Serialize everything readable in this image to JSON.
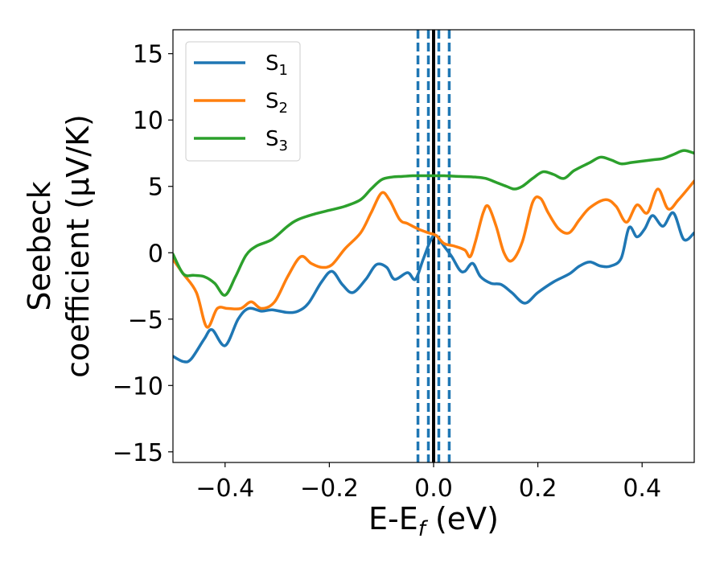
{
  "chart_data": {
    "type": "line",
    "title": "",
    "xlabel": {
      "main": "E-E",
      "sub": "f",
      "unit": " (eV)"
    },
    "ylabel": {
      "line1": "Seebeck",
      "line2": "coefficient  (μV/K)"
    },
    "xlim": [
      -0.5,
      0.5
    ],
    "ylim": [
      -15.8,
      16.8
    ],
    "xticks": [
      -0.4,
      -0.2,
      0.0,
      0.2,
      0.4
    ],
    "xtick_labels": [
      "−0.4",
      "−0.2",
      "0.0",
      "0.2",
      "0.4"
    ],
    "yticks": [
      -15,
      -10,
      -5,
      0,
      5,
      10,
      15
    ],
    "ytick_labels": [
      "−15",
      "−10",
      "−5",
      "0",
      "5",
      "10",
      "15"
    ],
    "grid": false,
    "legend_position": "top-left",
    "vlines": [
      {
        "x": 0.0,
        "style": "solid",
        "color": "#000000"
      },
      {
        "x": -0.03,
        "style": "dashed",
        "color": "#1f77b4"
      },
      {
        "x": -0.01,
        "style": "dashed",
        "color": "#1f77b4"
      },
      {
        "x": 0.01,
        "style": "dashed",
        "color": "#1f77b4"
      },
      {
        "x": 0.03,
        "style": "dashed",
        "color": "#1f77b4"
      }
    ],
    "series": [
      {
        "name": "S",
        "sub": "1",
        "color": "#1f77b4",
        "x": [
          -0.5,
          -0.48,
          -0.465,
          -0.44,
          -0.425,
          -0.4,
          -0.375,
          -0.355,
          -0.33,
          -0.31,
          -0.28,
          -0.26,
          -0.24,
          -0.215,
          -0.195,
          -0.175,
          -0.155,
          -0.13,
          -0.11,
          -0.09,
          -0.075,
          -0.05,
          -0.035,
          -0.02,
          -0.005,
          0.005,
          0.02,
          0.035,
          0.05,
          0.06,
          0.075,
          0.09,
          0.11,
          0.13,
          0.15,
          0.175,
          0.2,
          0.23,
          0.26,
          0.28,
          0.3,
          0.32,
          0.34,
          0.36,
          0.375,
          0.39,
          0.405,
          0.42,
          0.44,
          0.46,
          0.48,
          0.5
        ],
        "y": [
          -7.8,
          -8.2,
          -8.0,
          -6.5,
          -5.8,
          -7.0,
          -5.0,
          -4.2,
          -4.4,
          -4.3,
          -4.5,
          -4.4,
          -3.8,
          -2.2,
          -1.4,
          -2.4,
          -3.0,
          -2.0,
          -0.9,
          -1.1,
          -2.0,
          -1.5,
          -2.0,
          -0.5,
          1.0,
          1.3,
          0.5,
          -0.3,
          -1.3,
          -1.4,
          -0.8,
          -1.8,
          -2.3,
          -2.4,
          -3.0,
          -3.8,
          -3.0,
          -2.2,
          -1.6,
          -1.0,
          -0.7,
          -1.0,
          -1.0,
          -0.4,
          1.9,
          1.2,
          1.8,
          2.8,
          2.0,
          3.0,
          1.0,
          1.5
        ]
      },
      {
        "name": "S",
        "sub": "2",
        "color": "#ff7f0e",
        "x": [
          -0.5,
          -0.48,
          -0.455,
          -0.435,
          -0.415,
          -0.395,
          -0.37,
          -0.35,
          -0.33,
          -0.305,
          -0.28,
          -0.255,
          -0.235,
          -0.215,
          -0.195,
          -0.17,
          -0.14,
          -0.12,
          -0.1,
          -0.085,
          -0.065,
          -0.05,
          -0.03,
          -0.01,
          0.005,
          0.02,
          0.04,
          0.06,
          0.07,
          0.08,
          0.095,
          0.105,
          0.12,
          0.135,
          0.15,
          0.17,
          0.19,
          0.205,
          0.22,
          0.24,
          0.26,
          0.28,
          0.3,
          0.33,
          0.35,
          0.37,
          0.39,
          0.41,
          0.43,
          0.45,
          0.47,
          0.5
        ],
        "y": [
          -0.5,
          -1.6,
          -3.0,
          -5.6,
          -4.2,
          -4.2,
          -4.2,
          -3.7,
          -4.2,
          -3.7,
          -1.8,
          -0.3,
          -0.8,
          -1.1,
          -0.9,
          0.3,
          1.5,
          3.0,
          4.5,
          4.0,
          2.5,
          2.2,
          1.8,
          1.5,
          1.3,
          0.7,
          0.5,
          0.2,
          -0.3,
          0.8,
          3.0,
          3.5,
          2.0,
          0.0,
          -0.6,
          0.8,
          3.8,
          4.1,
          3.0,
          1.8,
          1.5,
          2.5,
          3.4,
          4.0,
          3.5,
          2.3,
          3.6,
          3.0,
          4.8,
          3.3,
          4.0,
          5.4
        ]
      },
      {
        "name": "S",
        "sub": "3",
        "color": "#2ca02c",
        "x": [
          -0.5,
          -0.48,
          -0.46,
          -0.44,
          -0.42,
          -0.4,
          -0.38,
          -0.36,
          -0.34,
          -0.31,
          -0.28,
          -0.26,
          -0.23,
          -0.2,
          -0.17,
          -0.14,
          -0.12,
          -0.1,
          -0.08,
          -0.06,
          -0.04,
          -0.02,
          0.0,
          0.02,
          0.05,
          0.08,
          0.1,
          0.12,
          0.14,
          0.155,
          0.17,
          0.19,
          0.21,
          0.23,
          0.25,
          0.27,
          0.3,
          0.32,
          0.34,
          0.36,
          0.38,
          0.4,
          0.42,
          0.44,
          0.46,
          0.48,
          0.5
        ],
        "y": [
          -0.1,
          -1.6,
          -1.7,
          -1.8,
          -2.3,
          -3.2,
          -1.8,
          -0.2,
          0.5,
          1.0,
          2.0,
          2.5,
          2.9,
          3.2,
          3.5,
          4.0,
          4.8,
          5.5,
          5.7,
          5.75,
          5.8,
          5.8,
          5.8,
          5.8,
          5.75,
          5.7,
          5.6,
          5.3,
          5.0,
          4.8,
          5.0,
          5.6,
          6.1,
          5.9,
          5.6,
          6.2,
          6.8,
          7.2,
          7.0,
          6.7,
          6.8,
          6.9,
          7.0,
          7.1,
          7.4,
          7.7,
          7.5
        ]
      }
    ]
  }
}
